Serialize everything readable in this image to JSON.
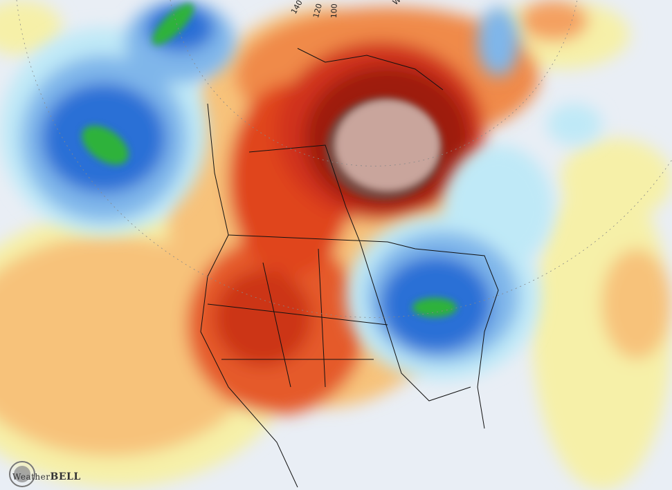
{
  "map": {
    "type": "temperature anomaly map",
    "projection": "polar stereographic, North America",
    "longitude_labels": [
      "140",
      "120",
      "100",
      "W"
    ],
    "colors": {
      "background": "#e9eef5",
      "light_yellow": "#f6f0a8",
      "light_orange": "#f7c27a",
      "orange": "#f08a4a",
      "red": "#e0441e",
      "dark_red": "#9e1a10",
      "brown": "#7a4a40",
      "mauve": "#c9a59c",
      "light_cyan": "#bfe9f7",
      "light_blue": "#7fb6ea",
      "blue": "#2b6fd6",
      "dark_blue": "#1f55b8",
      "green": "#2fb23a"
    }
  },
  "logo": {
    "prefix": "Weather",
    "suffix": "BELL"
  }
}
